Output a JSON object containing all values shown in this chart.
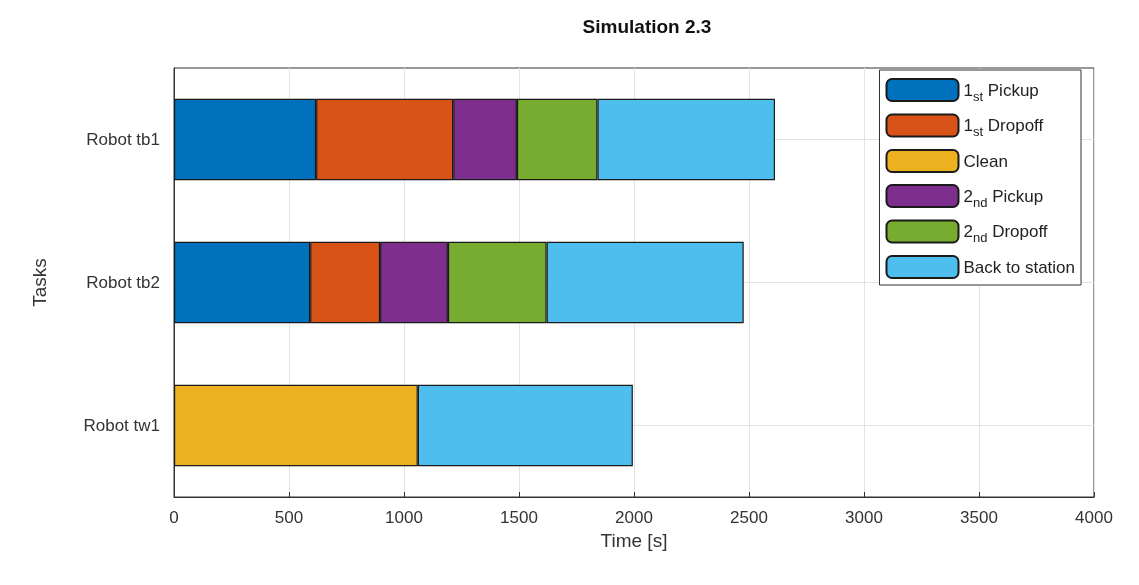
{
  "chart_data": {
    "type": "bar",
    "title": "Simulation 2.3",
    "xlabel": "Time [s]",
    "ylabel": "Tasks",
    "orientation": "horizontal",
    "stacked": true,
    "categories": [
      "Robot tb1",
      "Robot tb2",
      "Robot tw1"
    ],
    "series": [
      {
        "name": "1$_{st}$ Pickup",
        "color": "#0072bd",
        "values": [
          618,
          592,
          null
        ]
      },
      {
        "name": "1$_{st}$ Dropoff",
        "color": "#d95319",
        "values": [
          596,
          304,
          null
        ]
      },
      {
        "name": "Clean",
        "color": "#edb120",
        "values": [
          null,
          null,
          1060
        ]
      },
      {
        "name": "2$_{nd}$ Pickup",
        "color": "#7e2f8e",
        "values": [
          277,
          295,
          null
        ]
      },
      {
        "name": "2$_{nd}$ Dropoff",
        "color": "#77ac30",
        "values": [
          350,
          429,
          null
        ]
      },
      {
        "name": "Back to station",
        "color": "#4dbeee",
        "values": [
          772,
          857,
          935
        ]
      }
    ],
    "xlim": [
      0,
      4000
    ],
    "xticks": [
      0,
      500,
      1000,
      1500,
      2000,
      2500,
      3000,
      3500,
      4000
    ],
    "grid": true,
    "legend": "top right"
  }
}
